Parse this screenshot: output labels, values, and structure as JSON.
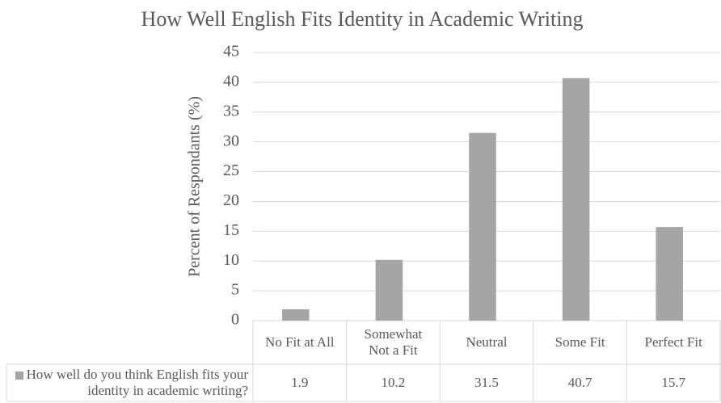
{
  "chart_data": {
    "type": "bar",
    "title": "How Well English Fits Identity in Academic Writing",
    "y_label": "Percent of Respondants (%)",
    "categories": [
      "No Fit at All",
      "Somewhat Not a Fit",
      "Neutral",
      "Some Fit",
      "Perfect Fit"
    ],
    "series": [
      {
        "name": "How well do you think English fits your identity in academic writing?",
        "color": "#a5a5a5",
        "values": [
          1.9,
          10.2,
          31.5,
          40.7,
          15.7
        ]
      }
    ],
    "ylim": [
      0,
      45
    ],
    "yticks": [
      0,
      5,
      10,
      15,
      20,
      25,
      30,
      35,
      40,
      45
    ],
    "grid": true
  }
}
